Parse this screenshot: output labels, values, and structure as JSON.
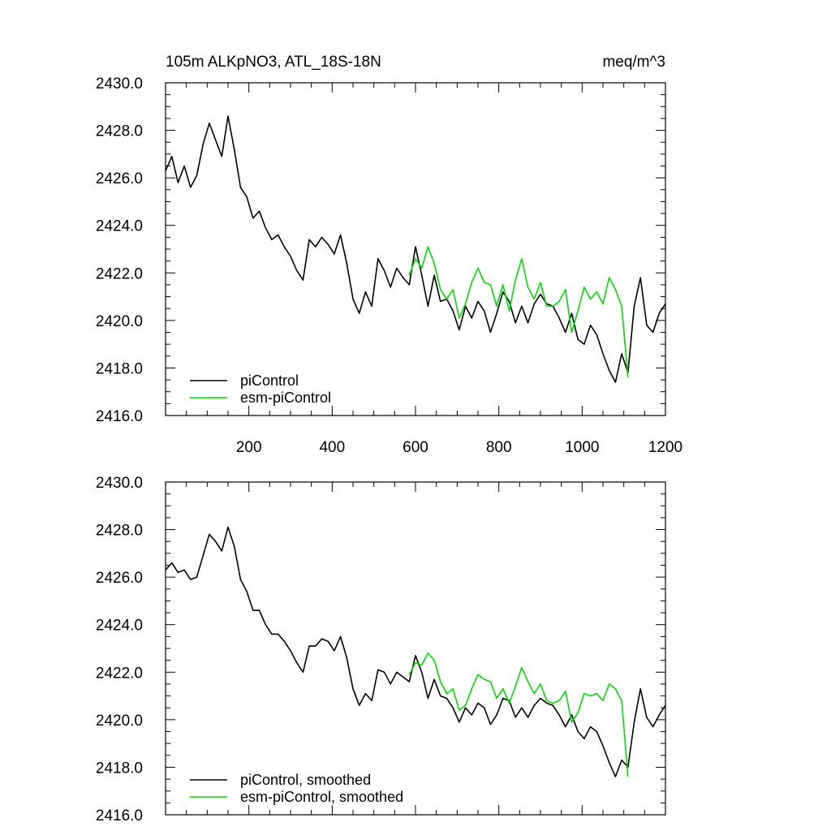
{
  "colors": {
    "black": "#000000",
    "green": "#00dd00"
  },
  "chart_data": [
    {
      "type": "line",
      "title": "105m ALKpNO3, ATL_18S-18N",
      "title_right": "meq/m^3",
      "xlim": [
        0,
        1200
      ],
      "ylim": [
        2416.0,
        2430.0
      ],
      "x_ticks": [
        "200",
        "400",
        "600",
        "800",
        "1000",
        "1200"
      ],
      "y_ticks": [
        "2416.0",
        "2418.0",
        "2420.0",
        "2422.0",
        "2424.0",
        "2426.0",
        "2428.0",
        "2430.0"
      ],
      "grid": false,
      "legend_position": "bottom-left",
      "series": [
        {
          "name": "piControl",
          "color": "#000000",
          "x_start": 0,
          "x_step": 15,
          "values": [
            2426.3,
            2426.9,
            2425.8,
            2426.5,
            2425.6,
            2426.1,
            2427.4,
            2428.3,
            2427.6,
            2426.9,
            2428.6,
            2427.2,
            2425.6,
            2425.2,
            2424.3,
            2424.6,
            2423.9,
            2423.4,
            2423.6,
            2423.1,
            2422.7,
            2422.1,
            2421.7,
            2423.4,
            2423.1,
            2423.5,
            2423.2,
            2422.8,
            2423.6,
            2422.4,
            2420.9,
            2420.3,
            2421.2,
            2420.6,
            2422.6,
            2422.1,
            2421.4,
            2422.2,
            2421.8,
            2421.5,
            2423.1,
            2421.9,
            2420.6,
            2421.9,
            2420.8,
            2420.9,
            2420.4,
            2419.6,
            2420.6,
            2420.1,
            2420.8,
            2420.4,
            2419.5,
            2420.3,
            2421.2,
            2420.8,
            2419.9,
            2420.6,
            2419.9,
            2420.7,
            2421.1,
            2420.7,
            2420.6,
            2420.1,
            2419.5,
            2420.3,
            2419.2,
            2419.0,
            2419.8,
            2419.4,
            2418.6,
            2417.9,
            2417.4,
            2418.6,
            2417.8,
            2420.6,
            2421.8,
            2419.8,
            2419.5,
            2420.3,
            2420.7
          ]
        },
        {
          "name": "esm-piControl",
          "color": "#00dd00",
          "x_start": 585,
          "x_step": 15,
          "values": [
            2421.9,
            2422.6,
            2422.2,
            2423.1,
            2422.4,
            2421.3,
            2420.9,
            2421.3,
            2420.1,
            2420.7,
            2421.6,
            2422.2,
            2421.6,
            2421.5,
            2420.6,
            2421.5,
            2420.4,
            2421.7,
            2422.6,
            2421.4,
            2420.9,
            2421.6,
            2420.6,
            2420.6,
            2420.8,
            2421.3,
            2419.5,
            2420.4,
            2421.4,
            2420.9,
            2421.2,
            2420.7,
            2421.8,
            2421.3,
            2420.6,
            2417.6
          ]
        }
      ]
    },
    {
      "type": "line",
      "xlim": [
        0,
        1200
      ],
      "ylim": [
        2416.0,
        2430.0
      ],
      "y_ticks": [
        "2416.0",
        "2418.0",
        "2420.0",
        "2422.0",
        "2424.0",
        "2426.0",
        "2428.0",
        "2430.0"
      ],
      "grid": false,
      "legend_position": "bottom-left",
      "series": [
        {
          "name": "piControl, smoothed",
          "color": "#000000",
          "x_start": 0,
          "x_step": 15,
          "values": [
            2426.3,
            2426.6,
            2426.2,
            2426.3,
            2425.9,
            2426.0,
            2426.9,
            2427.8,
            2427.5,
            2427.1,
            2428.1,
            2427.3,
            2425.9,
            2425.4,
            2424.6,
            2424.6,
            2424.0,
            2423.6,
            2423.6,
            2423.3,
            2422.9,
            2422.4,
            2422.0,
            2423.1,
            2423.1,
            2423.4,
            2423.3,
            2422.9,
            2423.5,
            2422.6,
            2421.3,
            2420.6,
            2421.1,
            2420.8,
            2422.1,
            2422.0,
            2421.5,
            2422.0,
            2421.8,
            2421.6,
            2422.7,
            2422.0,
            2420.9,
            2421.7,
            2421.0,
            2420.9,
            2420.5,
            2419.9,
            2420.5,
            2420.2,
            2420.7,
            2420.5,
            2419.8,
            2420.2,
            2420.9,
            2420.8,
            2420.1,
            2420.5,
            2420.1,
            2420.6,
            2420.9,
            2420.7,
            2420.6,
            2420.2,
            2419.7,
            2420.2,
            2419.5,
            2419.2,
            2419.7,
            2419.5,
            2418.9,
            2418.2,
            2417.6,
            2418.3,
            2418.0,
            2419.9,
            2421.3,
            2420.1,
            2419.7,
            2420.2,
            2420.6
          ]
        },
        {
          "name": "esm-piControl, smoothed",
          "color": "#00dd00",
          "x_start": 585,
          "x_step": 15,
          "values": [
            2421.9,
            2422.4,
            2422.3,
            2422.8,
            2422.5,
            2421.6,
            2421.1,
            2421.3,
            2420.4,
            2420.6,
            2421.3,
            2421.9,
            2421.7,
            2421.6,
            2420.9,
            2421.3,
            2420.7,
            2421.4,
            2422.2,
            2421.6,
            2421.1,
            2421.5,
            2420.8,
            2420.7,
            2420.8,
            2421.2,
            2419.9,
            2420.3,
            2421.1,
            2421.0,
            2421.1,
            2420.8,
            2421.5,
            2421.3,
            2420.8,
            2417.6
          ]
        }
      ]
    }
  ]
}
